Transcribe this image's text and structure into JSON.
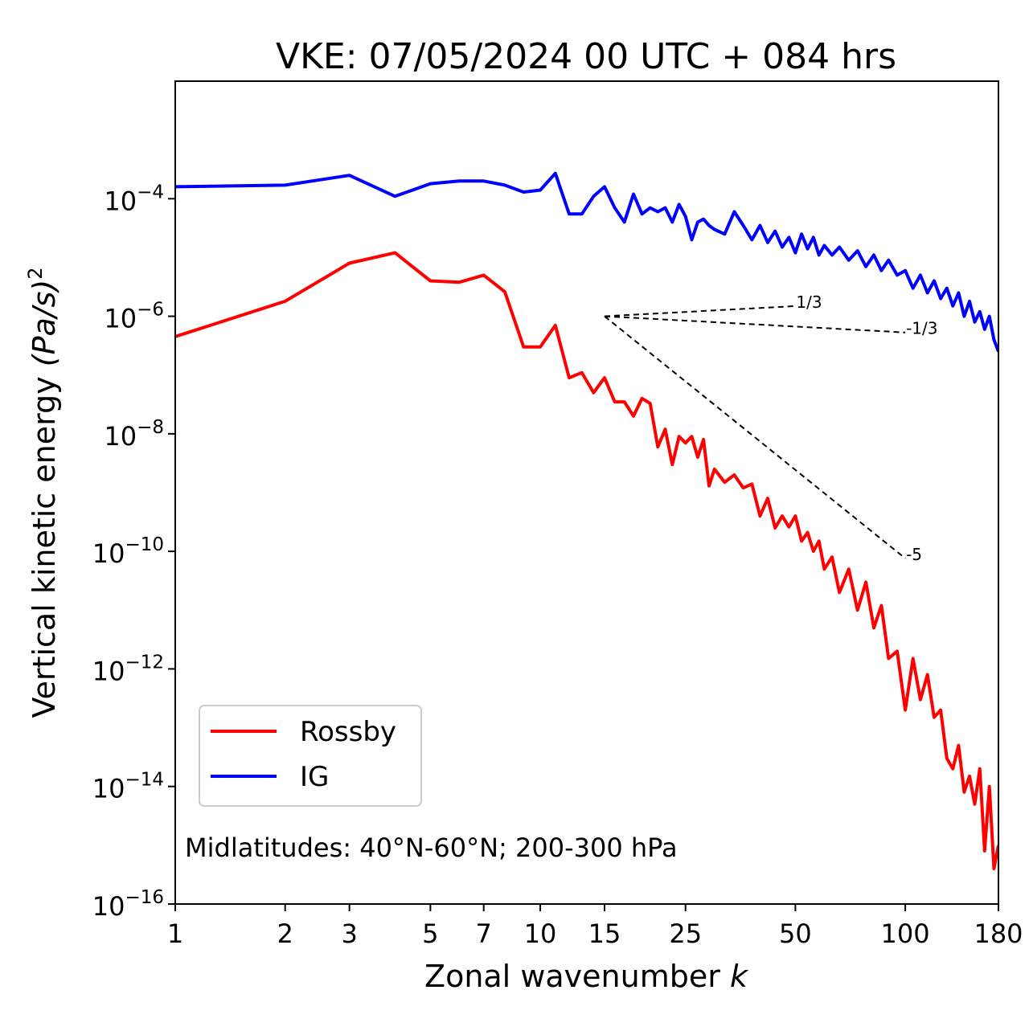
{
  "chart_data": {
    "type": "line",
    "title": "VKE: 07/05/2024 00 UTC + 084 hrs",
    "xlabel": "Zonal wavenumber ",
    "xlabel_var": "k",
    "ylabel": "Vertical kinetic energy ",
    "ylabel_unit": "(Pa/s)",
    "ylabel_exp": "2",
    "x_scale": "log",
    "y_scale": "log",
    "xlim": [
      1,
      180
    ],
    "ylim": [
      1e-16,
      0.01
    ],
    "x_ticks": [
      1,
      2,
      3,
      5,
      7,
      10,
      15,
      25,
      50,
      100,
      180
    ],
    "x_tick_labels": [
      "1",
      "2",
      "3",
      "5",
      "7",
      "10",
      "15",
      "25",
      "50",
      "100",
      "180"
    ],
    "y_ticks": [
      {
        "value": 1e-16,
        "base": "10",
        "exp": "−16"
      },
      {
        "value": 1e-14,
        "base": "10",
        "exp": "−14"
      },
      {
        "value": 1e-12,
        "base": "10",
        "exp": "−12"
      },
      {
        "value": 1e-10,
        "base": "10",
        "exp": "−10"
      },
      {
        "value": 1e-08,
        "base": "10",
        "exp": "−8"
      },
      {
        "value": 1e-06,
        "base": "10",
        "exp": "−6"
      },
      {
        "value": 0.0001,
        "base": "10",
        "exp": "−4"
      }
    ],
    "legend_position": "lower-left",
    "annotation": "Midlatitudes: 40°N-60°N; 200-300 hPa",
    "reference_slopes": [
      {
        "label": "1/3",
        "x": [
          15,
          50
        ],
        "y": [
          1e-06,
          1.49e-06
        ]
      },
      {
        "label": "-1/3",
        "x": [
          15,
          100
        ],
        "y": [
          1e-06,
          5.3e-07
        ]
      },
      {
        "label": "-5",
        "x": [
          15,
          100
        ],
        "y": [
          1e-06,
          7.6e-11
        ]
      }
    ],
    "series": [
      {
        "name": "Rossby",
        "color": "#ff0000",
        "x": [
          1,
          2,
          3,
          4,
          5,
          6,
          7,
          8,
          9,
          10,
          11,
          12,
          13,
          14,
          15,
          16,
          17,
          18,
          19,
          20,
          21,
          22,
          23,
          24,
          25,
          26,
          27,
          28,
          29,
          30,
          32,
          34,
          36,
          38,
          40,
          42,
          44,
          46,
          48,
          50,
          52,
          54,
          56,
          58,
          60,
          63,
          66,
          70,
          74,
          78,
          82,
          86,
          90,
          95,
          100,
          105,
          110,
          115,
          120,
          125,
          130,
          135,
          140,
          145,
          150,
          155,
          160,
          165,
          170,
          175,
          180
        ],
        "y": [
          4.5e-07,
          1.8e-06,
          8e-06,
          1.2e-05,
          4e-06,
          3.8e-06,
          5e-06,
          2.6e-06,
          3e-07,
          3e-07,
          7e-07,
          9e-08,
          1.1e-07,
          5e-08,
          9e-08,
          3.5e-08,
          3.5e-08,
          2e-08,
          4e-08,
          3.3e-08,
          6e-09,
          1.2e-08,
          3e-09,
          9e-09,
          7e-09,
          9e-09,
          4e-09,
          8e-09,
          1.3e-09,
          2.5e-09,
          1.5e-09,
          2e-09,
          1.2e-09,
          1.4e-09,
          4e-10,
          8e-10,
          2.5e-10,
          4e-10,
          2.6e-10,
          4e-10,
          1.5e-10,
          2.1e-10,
          1e-10,
          1.5e-10,
          5e-11,
          8e-11,
          2e-11,
          5e-11,
          1e-11,
          3e-11,
          5e-12,
          1.2e-11,
          1.5e-12,
          2e-12,
          2e-13,
          1.5e-12,
          3e-13,
          8e-13,
          1.5e-13,
          2e-13,
          3e-14,
          2e-14,
          5e-14,
          8e-15,
          1.5e-14,
          5e-15,
          2e-14,
          8e-16,
          1e-14,
          4e-16,
          1e-15
        ]
      },
      {
        "name": "IG",
        "color": "#0000ff",
        "x": [
          1,
          2,
          3,
          4,
          5,
          6,
          7,
          8,
          9,
          10,
          11,
          12,
          13,
          14,
          15,
          16,
          17,
          18,
          19,
          20,
          21,
          22,
          23,
          24,
          25,
          26,
          27,
          28,
          29,
          30,
          32,
          34,
          36,
          38,
          40,
          42,
          44,
          46,
          48,
          50,
          52,
          54,
          56,
          58,
          60,
          63,
          66,
          70,
          74,
          78,
          82,
          86,
          90,
          95,
          100,
          105,
          110,
          115,
          120,
          125,
          130,
          135,
          140,
          145,
          150,
          155,
          160,
          165,
          170,
          175,
          180
        ],
        "y": [
          0.00016,
          0.00017,
          0.00025,
          0.00011,
          0.00018,
          0.0002,
          0.0002,
          0.00017,
          0.00013,
          0.00014,
          0.00027,
          5.5e-05,
          5.5e-05,
          0.00011,
          0.00016,
          7e-05,
          4e-05,
          0.00012,
          5.5e-05,
          7e-05,
          6e-05,
          7e-05,
          4e-05,
          8e-05,
          5e-05,
          2e-05,
          4e-05,
          4.5e-05,
          3.5e-05,
          3e-05,
          2.5e-05,
          6e-05,
          3.5e-05,
          2e-05,
          3.5e-05,
          1.8e-05,
          2.8e-05,
          1.5e-05,
          2.2e-05,
          1.2e-05,
          2.5e-05,
          1.4e-05,
          2.2e-05,
          1.1e-05,
          1.6e-05,
          1.1e-05,
          1.5e-05,
          9e-06,
          1.3e-05,
          7e-06,
          1.1e-05,
          6e-06,
          9e-06,
          5e-06,
          6e-06,
          3e-06,
          5e-06,
          2.5e-06,
          4e-06,
          2e-06,
          3e-06,
          1.5e-06,
          2.5e-06,
          1e-06,
          1.8e-06,
          8e-07,
          1.2e-06,
          6e-07,
          1e-06,
          4e-07,
          2.5e-07
        ]
      }
    ]
  }
}
